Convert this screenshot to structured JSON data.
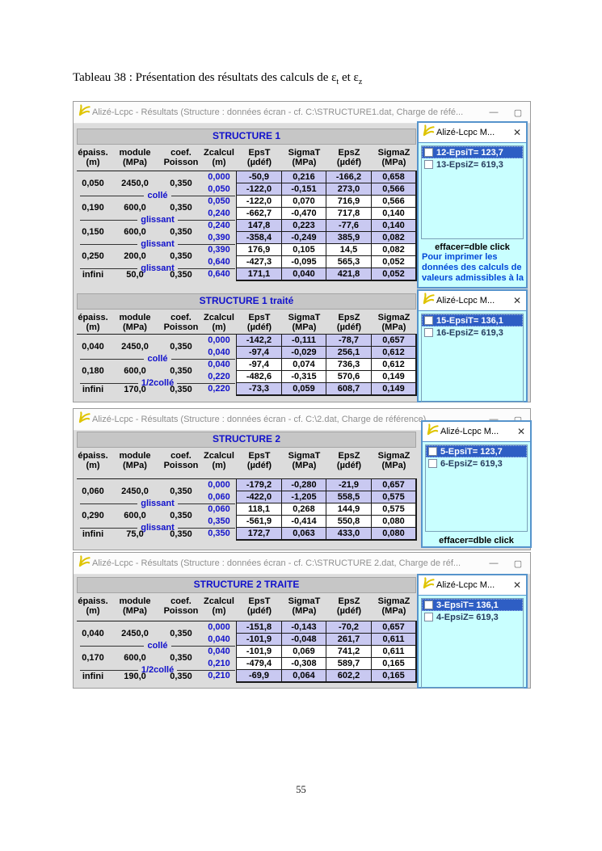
{
  "caption": {
    "prefix": "Tableau 38 : Présentation des résultats des calculs de  ",
    "eps_t": "ε",
    "sub_t": "t",
    "mid": " et ",
    "eps_z": "ε",
    "sub_z": "z"
  },
  "page_number": "55",
  "icons": {
    "minimize": "—",
    "maximize": "▢",
    "close": "✕",
    "logo": "alize-logo"
  },
  "column_headers": [
    [
      "épaiss.",
      "(m)"
    ],
    [
      "module",
      "(MPa)"
    ],
    [
      "coef.",
      "Poisson"
    ],
    [
      "Zcalcul",
      "(m)"
    ],
    [
      "EpsT",
      "(µdéf)"
    ],
    [
      "SigmaT",
      "(MPa)"
    ],
    [
      "EpsZ",
      "(µdéf)"
    ],
    [
      "SigmaZ",
      "(MPa)"
    ]
  ],
  "windows": [
    {
      "title": "Alizé-Lcpc - Résultats (Structure : données écran - cf. C:\\STRUCTURE1.dat, Charge de réfé...",
      "sections": [
        {
          "header": "STRUCTURE 1",
          "layers": [
            {
              "ep": "0,050",
              "mod": "2450,0",
              "poisson": "0,350",
              "iface": "collé",
              "hl": true,
              "rows": [
                {
                  "z": "0,000",
                  "v": [
                    "-50,9",
                    "0,216",
                    "-166,2",
                    "0,658"
                  ]
                },
                {
                  "z": "0,050",
                  "v": [
                    "-122,0",
                    "-0,151",
                    "273,0",
                    "0,566"
                  ]
                }
              ]
            },
            {
              "ep": "0,190",
              "mod": "600,0",
              "poisson": "0,350",
              "iface": "glissant",
              "hl": false,
              "rows": [
                {
                  "z": "0,050",
                  "v": [
                    "-122,0",
                    "0,070",
                    "716,9",
                    "0,566"
                  ]
                },
                {
                  "z": "0,240",
                  "v": [
                    "-662,7",
                    "-0,470",
                    "717,8",
                    "0,140"
                  ]
                }
              ]
            },
            {
              "ep": "0,150",
              "mod": "600,0",
              "poisson": "0,350",
              "iface": "glissant",
              "hl": true,
              "rows": [
                {
                  "z": "0,240",
                  "v": [
                    "147,8",
                    "0,223",
                    "-77,6",
                    "0,140"
                  ]
                },
                {
                  "z": "0,390",
                  "v": [
                    "-358,4",
                    "-0,249",
                    "385,9",
                    "0,082"
                  ]
                }
              ]
            },
            {
              "ep": "0,250",
              "mod": "200,0",
              "poisson": "0,350",
              "iface": "glissant",
              "hl": false,
              "rows": [
                {
                  "z": "0,390",
                  "v": [
                    "176,9",
                    "0,105",
                    "14,5",
                    "0,082"
                  ]
                },
                {
                  "z": "0,640",
                  "v": [
                    "-427,3",
                    "-0,095",
                    "565,3",
                    "0,052"
                  ]
                }
              ]
            },
            {
              "ep": "infini",
              "mod": "50,0",
              "poisson": "0,350",
              "iface": null,
              "hl": true,
              "rows": [
                {
                  "z": "0,640",
                  "v": [
                    "171,1",
                    "0,040",
                    "421,8",
                    "0,052"
                  ]
                }
              ]
            }
          ]
        },
        {
          "header": "STRUCTURE 1 traité",
          "layers": [
            {
              "ep": "0,040",
              "mod": "2450,0",
              "poisson": "0,350",
              "iface": "collé",
              "hl": true,
              "rows": [
                {
                  "z": "0,000",
                  "v": [
                    "-142,2",
                    "-0,111",
                    "-78,7",
                    "0,657"
                  ]
                },
                {
                  "z": "0,040",
                  "v": [
                    "-97,4",
                    "-0,029",
                    "256,1",
                    "0,612"
                  ]
                }
              ]
            },
            {
              "ep": "0,180",
              "mod": "600,0",
              "poisson": "0,350",
              "iface": "1/2collé",
              "hl": false,
              "rows": [
                {
                  "z": "0,040",
                  "v": [
                    "-97,4",
                    "0,074",
                    "736,3",
                    "0,612"
                  ]
                },
                {
                  "z": "0,220",
                  "v": [
                    "-482,6",
                    "-0,315",
                    "570,6",
                    "0,149"
                  ]
                }
              ]
            },
            {
              "ep": "infini",
              "mod": "170,0",
              "poisson": "0,350",
              "iface": null,
              "hl": true,
              "rows": [
                {
                  "z": "0,220",
                  "v": [
                    "-73,3",
                    "0,059",
                    "608,7",
                    "0,149"
                  ]
                }
              ]
            }
          ]
        }
      ]
    },
    {
      "title": "Alizé-Lcpc - Résultats (Structure : données écran - cf. C:\\2.dat, Charge de référence)",
      "sections": [
        {
          "header": "STRUCTURE 2",
          "layers": [
            {
              "ep": "0,060",
              "mod": "2450,0",
              "poisson": "0,350",
              "iface": "glissant",
              "hl": true,
              "rows": [
                {
                  "z": "0,000",
                  "v": [
                    "-179,2",
                    "-0,280",
                    "-21,9",
                    "0,657"
                  ]
                },
                {
                  "z": "0,060",
                  "v": [
                    "-422,0",
                    "-1,205",
                    "558,5",
                    "0,575"
                  ]
                }
              ]
            },
            {
              "ep": "0,290",
              "mod": "600,0",
              "poisson": "0,350",
              "iface": "glissant",
              "hl": false,
              "rows": [
                {
                  "z": "0,060",
                  "v": [
                    "118,1",
                    "0,268",
                    "144,9",
                    "0,575"
                  ]
                },
                {
                  "z": "0,350",
                  "v": [
                    "-561,9",
                    "-0,414",
                    "550,8",
                    "0,080"
                  ]
                }
              ]
            },
            {
              "ep": "infini",
              "mod": "75,0",
              "poisson": "0,350",
              "iface": null,
              "hl": true,
              "rows": [
                {
                  "z": "0,350",
                  "v": [
                    "172,7",
                    "0,063",
                    "433,0",
                    "0,080"
                  ]
                }
              ]
            }
          ]
        }
      ]
    },
    {
      "title": "Alizé-Lcpc - Résultats (Structure : données écran - cf. C:\\STRUCTURE 2.dat, Charge de réf...",
      "sections": [
        {
          "header": "STRUCTURE 2 TRAITE",
          "layers": [
            {
              "ep": "0,040",
              "mod": "2450,0",
              "poisson": "0,350",
              "iface": "collé",
              "hl": true,
              "rows": [
                {
                  "z": "0,000",
                  "v": [
                    "-151,8",
                    "-0,143",
                    "-70,2",
                    "0,657"
                  ]
                },
                {
                  "z": "0,040",
                  "v": [
                    "-101,9",
                    "-0,048",
                    "261,7",
                    "0,611"
                  ]
                }
              ]
            },
            {
              "ep": "0,170",
              "mod": "600,0",
              "poisson": "0,350",
              "iface": "1/2collé",
              "hl": false,
              "rows": [
                {
                  "z": "0,040",
                  "v": [
                    "-101,9",
                    "0,069",
                    "741,2",
                    "0,611"
                  ]
                },
                {
                  "z": "0,210",
                  "v": [
                    "-479,4",
                    "-0,308",
                    "589,7",
                    "0,165"
                  ]
                }
              ]
            },
            {
              "ep": "infini",
              "mod": "190,0",
              "poisson": "0,350",
              "iface": null,
              "hl": true,
              "rows": [
                {
                  "z": "0,210",
                  "v": [
                    "-69,9",
                    "0,064",
                    "602,2",
                    "0,165"
                  ]
                }
              ]
            }
          ]
        }
      ]
    }
  ],
  "panels": [
    {
      "title": "Alizé-Lcpc M...",
      "items": [
        {
          "label": "12-EpsiT= 123,7",
          "selected": true
        },
        {
          "label": "13-EpsiZ= 619,3",
          "selected": false
        }
      ],
      "footer": "effacer=dble click",
      "note": "Pour imprimer les données des calculs de valeurs admissibles à la"
    },
    {
      "title": "Alizé-Lcpc M...",
      "items": [
        {
          "label": "15-EpsiT= 136,1",
          "selected": true
        },
        {
          "label": "16-EpsiZ= 619,3",
          "selected": false
        }
      ]
    },
    {
      "title": "Alizé-Lcpc M...",
      "items": [
        {
          "label": "5-EpsiT= 123,7",
          "selected": true
        },
        {
          "label": "6-EpsiZ= 619,3",
          "selected": false
        }
      ],
      "footer": "effacer=dble click"
    },
    {
      "title": "Alizé-Lcpc M...",
      "items": [
        {
          "label": "3-EpsiT= 136,1",
          "selected": true
        },
        {
          "label": "4-EpsiZ= 619,3",
          "selected": false
        }
      ]
    }
  ],
  "colors": {
    "accent_blue": "#1111cc",
    "row_highlight": "#c9c9f1",
    "row_plain": "#ffffff",
    "panel_bg": "#c9ffff",
    "selection_bg": "#2e5ec4",
    "band_bg": "#c6c6c6",
    "note_blue": "#0048d8",
    "logo_yellow": "#dfc400"
  }
}
